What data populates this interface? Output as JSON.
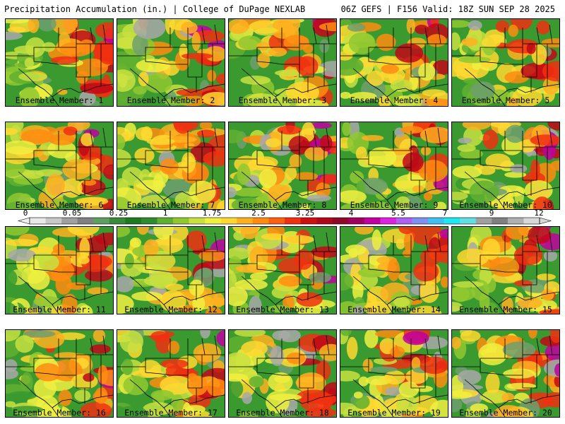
{
  "header": {
    "left": "Precipitation Accumulation (in.) | College of DuPage NEXLAB",
    "right": "06Z GEFS | F156 Valid: 18Z SUN SEP 28 2025"
  },
  "member_label_prefix": "Ensemble Member:",
  "members": [
    {
      "id": "1",
      "label": "Ensemble Member: 1"
    },
    {
      "id": "2",
      "label": "Ensemble Member: 2"
    },
    {
      "id": "3",
      "label": "Ensemble Member: 3"
    },
    {
      "id": "4",
      "label": "Ensemble Member: 4"
    },
    {
      "id": "5",
      "label": "Ensemble Member: 5"
    },
    {
      "id": "6",
      "label": "Ensemble Member: 6"
    },
    {
      "id": "7",
      "label": "Ensemble Member: 7"
    },
    {
      "id": "8",
      "label": "Ensemble Member: 8"
    },
    {
      "id": "9",
      "label": "Ensemble Member: 9"
    },
    {
      "id": "10",
      "label": "Ensemble Member: 10"
    },
    {
      "id": "11",
      "label": "Ensemble Member: 11"
    },
    {
      "id": "12",
      "label": "Ensemble Member: 12"
    },
    {
      "id": "13",
      "label": "Ensemble Member: 13"
    },
    {
      "id": "14",
      "label": "Ensemble Member: 14"
    },
    {
      "id": "15",
      "label": "Ensemble Member: 15"
    },
    {
      "id": "16",
      "label": "Ensemble Member: 16"
    },
    {
      "id": "17",
      "label": "Ensemble Member: 17"
    },
    {
      "id": "18",
      "label": "Ensemble Member: 18"
    },
    {
      "id": "19",
      "label": "Ensemble Member: 19"
    },
    {
      "id": "20",
      "label": "Ensemble Member: 20"
    }
  ],
  "colorbar": {
    "tick_labels": [
      "0",
      "0.05",
      "0.25",
      "1",
      "1.75",
      "2.5",
      "3.25",
      "4",
      "5.5",
      "7",
      "9",
      "12"
    ],
    "colors": [
      "#e8e8e8",
      "#c8c8c8",
      "#a0a0a0",
      "#808080",
      "#5e9e5e",
      "#3a8a3a",
      "#1e7a1e",
      "#2e8b2e",
      "#60b030",
      "#90c830",
      "#c8e040",
      "#f0f040",
      "#ffd830",
      "#ffb020",
      "#ff8c10",
      "#ff6010",
      "#f03010",
      "#d01010",
      "#b00818",
      "#900828",
      "#a00060",
      "#c000a0",
      "#e020e0",
      "#b060f0",
      "#8090f0",
      "#40c0f0",
      "#20e8f0",
      "#60e0e0",
      "#a0a0a0",
      "#808080",
      "#b0b0b0",
      "#d8d8d8"
    ]
  }
}
